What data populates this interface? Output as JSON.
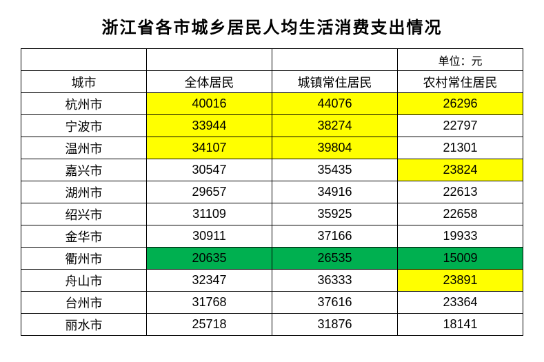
{
  "title": "浙江省各市城乡居民人均生活消费支出情况",
  "unit_label": "单位：元",
  "colors": {
    "yellow": "#ffff00",
    "green": "#00b050",
    "white": "#ffffff"
  },
  "table": {
    "columns": [
      "城市",
      "全体居民",
      "城镇常住居民",
      "农村常住居民"
    ],
    "rows": [
      {
        "city": "杭州市",
        "values": [
          "40016",
          "44076",
          "26296"
        ],
        "cell_colors": [
          "#ffff00",
          "#ffff00",
          "#ffff00"
        ]
      },
      {
        "city": "宁波市",
        "values": [
          "33944",
          "38274",
          "22797"
        ],
        "cell_colors": [
          "#ffff00",
          "#ffff00",
          "#ffffff"
        ]
      },
      {
        "city": "温州市",
        "values": [
          "34107",
          "39804",
          "21301"
        ],
        "cell_colors": [
          "#ffff00",
          "#ffff00",
          "#ffffff"
        ]
      },
      {
        "city": "嘉兴市",
        "values": [
          "30547",
          "35435",
          "23824"
        ],
        "cell_colors": [
          "#ffffff",
          "#ffffff",
          "#ffff00"
        ]
      },
      {
        "city": "湖州市",
        "values": [
          "29657",
          "34916",
          "22613"
        ],
        "cell_colors": [
          "#ffffff",
          "#ffffff",
          "#ffffff"
        ]
      },
      {
        "city": "绍兴市",
        "values": [
          "31109",
          "35925",
          "22658"
        ],
        "cell_colors": [
          "#ffffff",
          "#ffffff",
          "#ffffff"
        ]
      },
      {
        "city": "金华市",
        "values": [
          "30911",
          "37166",
          "19933"
        ],
        "cell_colors": [
          "#ffffff",
          "#ffffff",
          "#ffffff"
        ]
      },
      {
        "city": "衢州市",
        "values": [
          "20635",
          "26535",
          "15009"
        ],
        "cell_colors": [
          "#00b050",
          "#00b050",
          "#00b050"
        ]
      },
      {
        "city": "舟山市",
        "values": [
          "32347",
          "36333",
          "23891"
        ],
        "cell_colors": [
          "#ffffff",
          "#ffffff",
          "#ffff00"
        ]
      },
      {
        "city": "台州市",
        "values": [
          "31768",
          "37616",
          "23364"
        ],
        "cell_colors": [
          "#ffffff",
          "#ffffff",
          "#ffffff"
        ]
      },
      {
        "city": "丽水市",
        "values": [
          "25718",
          "31876",
          "18141"
        ],
        "cell_colors": [
          "#ffffff",
          "#ffffff",
          "#ffffff"
        ]
      }
    ]
  }
}
